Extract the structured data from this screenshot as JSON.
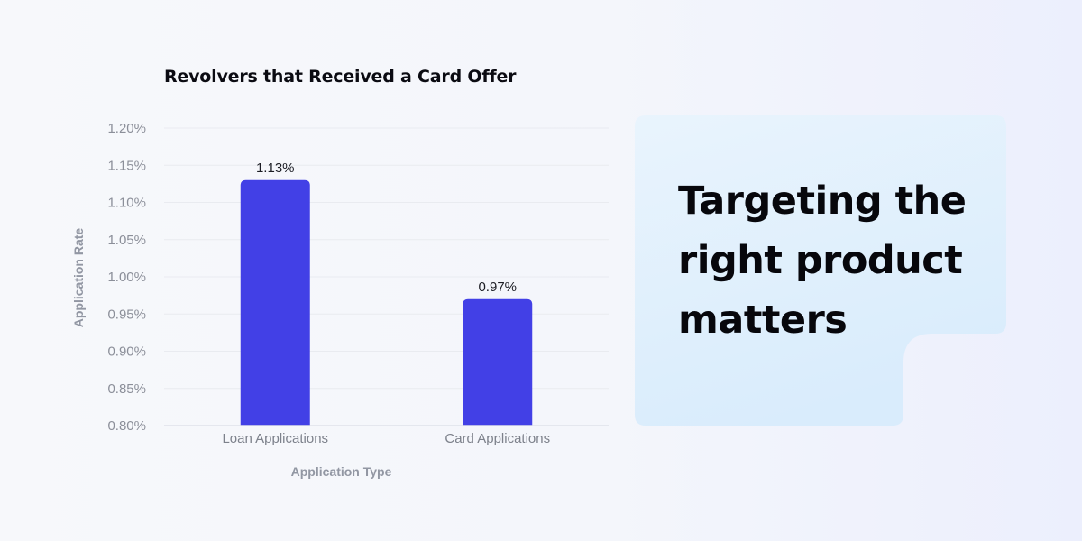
{
  "chart_data": {
    "type": "bar",
    "title": "Revolvers that Received a Card Offer",
    "xlabel": "Application Type",
    "ylabel": "Application Rate",
    "categories": [
      "Loan Applications",
      "Card Applications"
    ],
    "values": [
      1.13,
      0.97
    ],
    "value_labels": [
      "1.13%",
      "0.97%"
    ],
    "ylim": [
      0.8,
      1.2
    ],
    "yticks": [
      0.8,
      0.85,
      0.9,
      0.95,
      1.0,
      1.05,
      1.1,
      1.15,
      1.2
    ],
    "ytick_labels": [
      "0.80%",
      "0.85%",
      "0.90%",
      "0.95%",
      "1.00%",
      "1.05%",
      "1.10%",
      "1.15%",
      "1.20%"
    ],
    "grid": true,
    "legend": false,
    "bar_color": "#4240e6"
  },
  "callout": {
    "lines": [
      "Targeting the",
      "right product",
      "matters"
    ]
  }
}
